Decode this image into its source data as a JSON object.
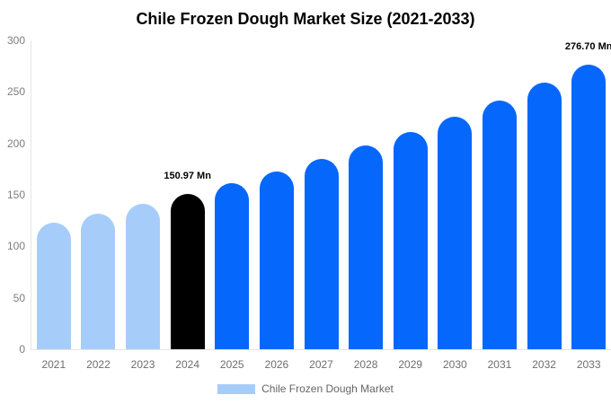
{
  "title": "Chile Frozen Dough Market Size (2021-2033)",
  "colors": {
    "light_blue": "#A6CDFA",
    "highlight_black": "#000000",
    "blue": "#0667FC",
    "axis_line": "#E5E5E5",
    "y_tick_text": "#7D7D7D",
    "x_tick_text": "#6E6E6E",
    "legend_text": "#666666",
    "title_text": "#000000",
    "background": "#FFFFFF"
  },
  "chart_data": {
    "type": "bar",
    "title": "Chile Frozen Dough Market Size (2021-2033)",
    "categories": [
      "2021",
      "2022",
      "2023",
      "2024",
      "2025",
      "2026",
      "2027",
      "2028",
      "2029",
      "2030",
      "2031",
      "2032",
      "2033"
    ],
    "values": [
      123.4,
      131.9,
      141.1,
      150.97,
      161.5,
      172.7,
      184.8,
      197.6,
      211.4,
      226.1,
      241.8,
      258.7,
      276.7
    ],
    "bar_colors": [
      "#A6CDFA",
      "#A6CDFA",
      "#A6CDFA",
      "#000000",
      "#0667FC",
      "#0667FC",
      "#0667FC",
      "#0667FC",
      "#0667FC",
      "#0667FC",
      "#0667FC",
      "#0667FC",
      "#0667FC"
    ],
    "xlabel": "",
    "ylabel": "",
    "ylim": [
      0,
      300
    ],
    "yticks": [
      0,
      50,
      100,
      150,
      200,
      250,
      300
    ],
    "grid": false,
    "legend_position": "bottom",
    "legend": [
      {
        "label": "Chile Frozen Dough Market",
        "color": "#A6CDFA"
      }
    ],
    "annotations": [
      {
        "index": 3,
        "category": "2024",
        "text": "150.97 Mn"
      },
      {
        "index": 12,
        "category": "2033",
        "text": "276.70 Mn"
      }
    ]
  }
}
